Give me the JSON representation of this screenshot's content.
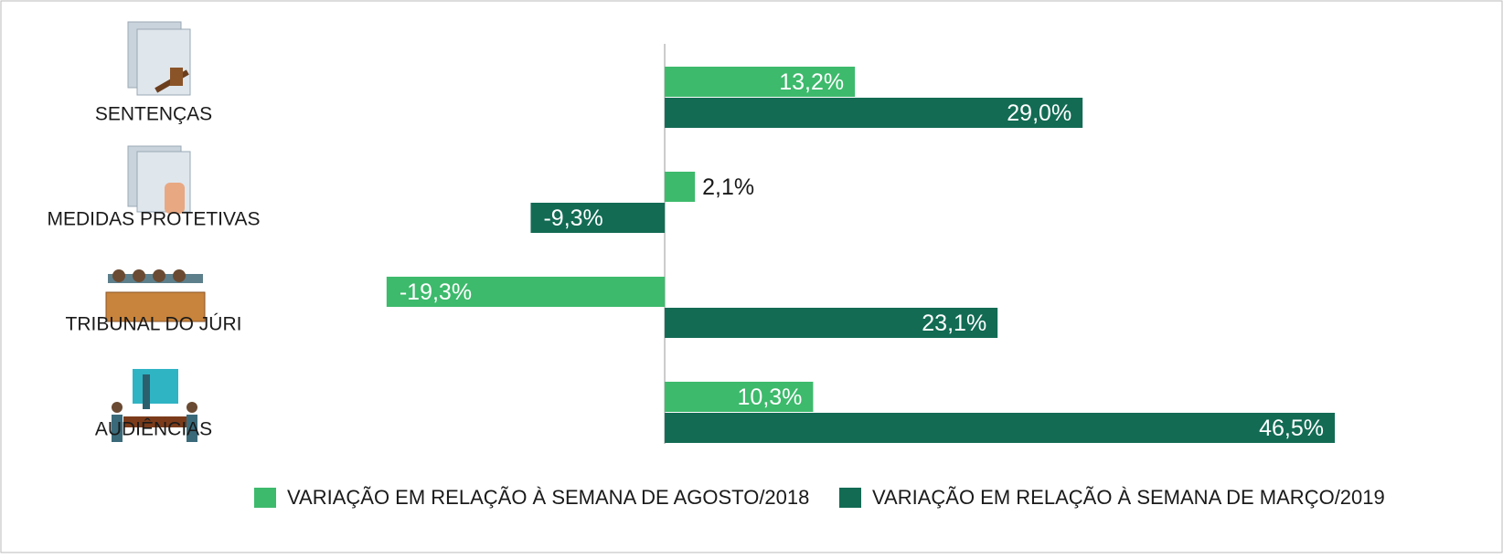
{
  "chart_data": {
    "type": "hbar",
    "categories": [
      "SENTENÇAS",
      "MEDIDAS PROTETIVAS",
      "TRIBUNAL DO JÚRI",
      "AUDIÊNCIAS"
    ],
    "series": [
      {
        "name": "VARIAÇÃO EM RELAÇÃO À SEMANA DE AGOSTO/2018",
        "color": "#3dba6c",
        "values": [
          13.2,
          2.1,
          -19.3,
          10.3
        ],
        "value_labels": [
          "13,2%",
          "2,1%",
          "-19,3%",
          "10,3%"
        ]
      },
      {
        "name": "VARIAÇÃO EM RELAÇÃO À SEMANA DE MARÇO/2019",
        "color": "#136b54",
        "values": [
          29.0,
          -9.3,
          23.1,
          46.5
        ],
        "value_labels": [
          "29,0%",
          "-9,3%",
          "23,1%",
          "46,5%"
        ]
      }
    ],
    "xlim": [
      -25,
      55
    ]
  }
}
